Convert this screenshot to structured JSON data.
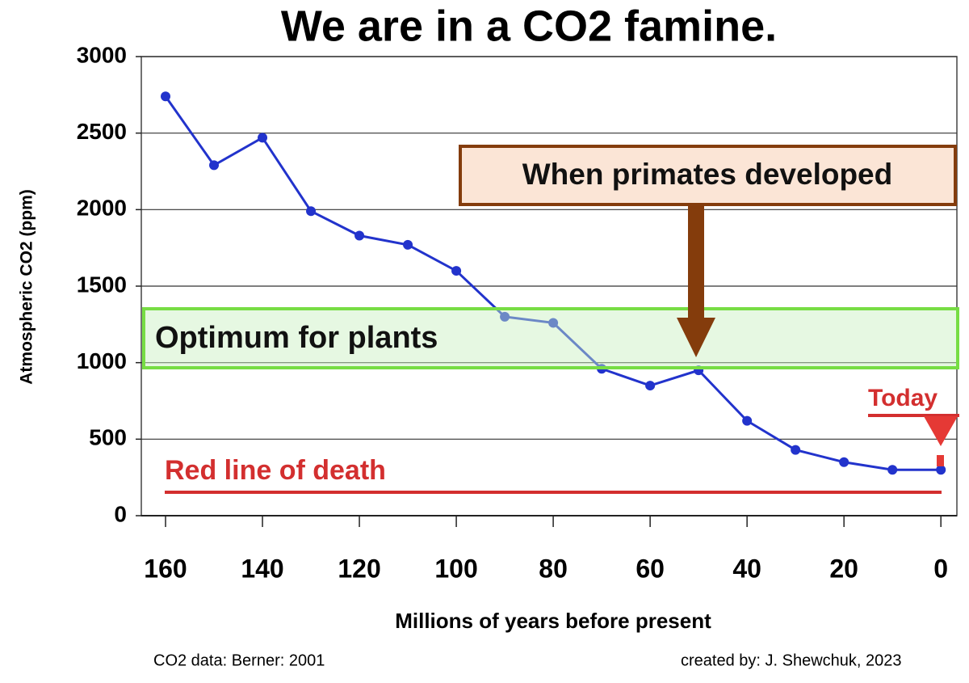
{
  "chart_data": {
    "type": "line",
    "title": "We are in a CO2 famine.",
    "x_label": "Millions of years before present",
    "y_label": "Atmospheric CO2 (ppm)",
    "x": [
      160,
      150,
      140,
      130,
      120,
      110,
      100,
      90,
      80,
      70,
      60,
      50,
      40,
      30,
      20,
      10,
      0
    ],
    "series": [
      {
        "color": "#2233cc",
        "values": [
          2740,
          2290,
          2470,
          1990,
          1830,
          1770,
          1600,
          1300,
          1260,
          960,
          850,
          950,
          620,
          430,
          350,
          300,
          300
        ]
      }
    ],
    "xlim": [
      165,
      -3.3
    ],
    "xticks": [
      160,
      140,
      120,
      100,
      80,
      60,
      40,
      20,
      0
    ],
    "ylim": [
      0,
      3000
    ],
    "yticks": [
      0,
      500,
      1000,
      1500,
      2000,
      2500,
      3000
    ],
    "grid": true,
    "annotations": {
      "primates": "When primates developed",
      "optimum": "Optimum for plants",
      "today": "Today",
      "death": "Red line of death"
    },
    "footer_left": "CO2 data: Berner: 2001",
    "footer_right": "created by: J. Shewchuk, 2023"
  }
}
